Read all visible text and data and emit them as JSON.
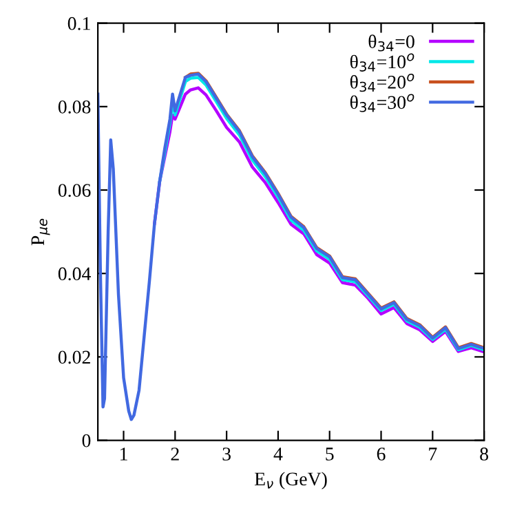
{
  "chart_data": {
    "type": "line",
    "xlabel": "E$_{ν}$ (GeV)",
    "ylabel": "P$_{μe}$",
    "x": [
      0.5,
      0.55,
      0.6,
      0.63,
      0.7,
      0.75,
      0.8,
      0.9,
      1.0,
      1.1,
      1.15,
      1.2,
      1.3,
      1.4,
      1.5,
      1.6,
      1.7,
      1.8,
      1.9,
      1.95,
      2.0,
      2.1,
      2.2,
      2.3,
      2.45,
      2.6,
      2.8,
      3.0,
      3.25,
      3.5,
      3.75,
      4.0,
      4.25,
      4.5,
      4.75,
      5.0,
      5.25,
      5.5,
      5.75,
      6.0,
      6.25,
      6.5,
      6.75,
      7.0,
      7.25,
      7.5,
      7.75,
      8.0
    ],
    "series": [
      {
        "name": "θ$_{34}$=0",
        "color": "#b400ff",
        "values": [
          null,
          null,
          null,
          null,
          null,
          null,
          null,
          null,
          null,
          null,
          null,
          null,
          null,
          null,
          null,
          0.052,
          0.062,
          0.068,
          0.074,
          0.078,
          0.077,
          0.08,
          0.083,
          0.084,
          0.0845,
          0.0828,
          0.079,
          0.075,
          0.0715,
          0.0655,
          0.0618,
          0.057,
          0.0518,
          0.0495,
          0.0445,
          0.0425,
          0.0378,
          0.0372,
          0.034,
          0.0303,
          0.0318,
          0.028,
          0.0265,
          0.0237,
          0.0261,
          0.0213,
          0.0222,
          0.0212
        ]
      },
      {
        "name": "θ$_{34}$=10$^{o}$",
        "color": "#00e8e8",
        "values": [
          null,
          null,
          null,
          null,
          null,
          null,
          null,
          null,
          null,
          null,
          null,
          null,
          null,
          null,
          null,
          null,
          0.062,
          0.069,
          0.076,
          0.081,
          0.078,
          0.082,
          0.086,
          0.0868,
          0.087,
          0.0852,
          0.0812,
          0.0772,
          0.0732,
          0.0672,
          0.0632,
          0.0583,
          0.0528,
          0.0503,
          0.0454,
          0.0434,
          0.0385,
          0.038,
          0.0346,
          0.0311,
          0.0326,
          0.0286,
          0.0271,
          0.0242,
          0.0266,
          0.0217,
          0.0227,
          0.0217
        ]
      },
      {
        "name": "θ$_{34}$=20$^{o}$",
        "color": "#c8501e",
        "values": [
          null,
          null,
          null,
          null,
          null,
          null,
          null,
          null,
          null,
          null,
          null,
          null,
          null,
          null,
          null,
          null,
          null,
          null,
          null,
          null,
          null,
          null,
          0.087,
          0.0878,
          0.088,
          0.0862,
          0.0822,
          0.0782,
          0.0742,
          0.0682,
          0.0642,
          0.0592,
          0.0537,
          0.0512,
          0.0462,
          0.0442,
          0.0392,
          0.0387,
          0.0352,
          0.0317,
          0.0332,
          0.0292,
          0.0277,
          0.0247,
          0.0272,
          0.0222,
          0.0232,
          0.0222
        ]
      },
      {
        "name": "θ$_{34}$=30$^{o}$",
        "color": "#4169e1",
        "values": [
          0.083,
          0.04,
          0.008,
          0.01,
          0.05,
          0.072,
          0.065,
          0.035,
          0.015,
          0.007,
          0.005,
          0.006,
          0.012,
          0.025,
          0.038,
          0.052,
          0.062,
          0.07,
          0.077,
          0.083,
          0.079,
          0.083,
          0.087,
          0.0875,
          0.0878,
          0.086,
          0.082,
          0.078,
          0.074,
          0.068,
          0.064,
          0.059,
          0.0535,
          0.051,
          0.046,
          0.044,
          0.039,
          0.0385,
          0.035,
          0.0315,
          0.033,
          0.029,
          0.0275,
          0.0245,
          0.027,
          0.022,
          0.023,
          0.022
        ]
      }
    ],
    "xlim": [
      0.5,
      8
    ],
    "ylim": [
      0,
      0.1
    ],
    "xticks": [
      1,
      2,
      3,
      4,
      5,
      6,
      7,
      8
    ],
    "yticks": [
      0,
      0.02,
      0.04,
      0.06,
      0.08,
      0.1
    ],
    "legend": "top right",
    "grid": false,
    "line_style": "solid"
  }
}
